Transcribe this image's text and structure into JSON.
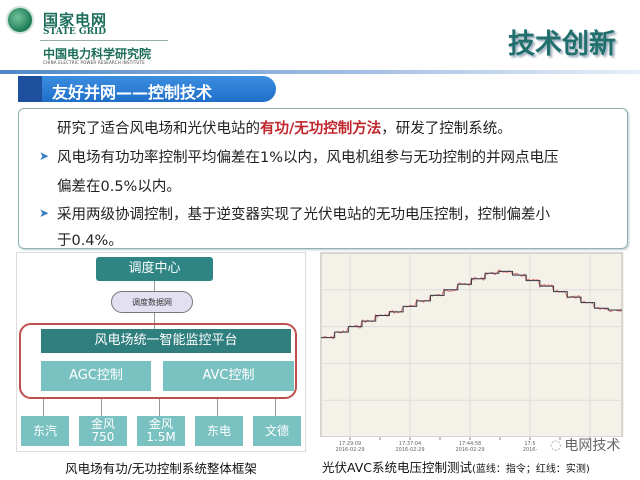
{
  "header": {
    "org_cn": "国家电网",
    "org_en": "STATE GRID",
    "institute_cn": "中国电力科学研究院",
    "institute_en": "CHINA ELECTRIC POWER RESEARCH INSTITUTE",
    "slogan": "技术创新"
  },
  "section_title": "友好并网——控制技术",
  "content": {
    "line1_pre": "研究了适合风电场和光伏电站的",
    "line1_hl": "有功/无功控制方法",
    "line1_post": "，研发了控制系统。",
    "bullet1_a": "风电场有功功率控制平均偏差在1%以内，风电机组参与无功控制的并网点电压",
    "bullet1_b": "偏差在0.5%以内。",
    "bullet2_a": "采用两级协调控制，基于逆变器实现了光伏电站的无功电压控制，控制偏差小",
    "bullet2_b": "于0.4%。"
  },
  "diagram": {
    "dispatch_center": "调度中心",
    "network": "调度数据网",
    "platform": "风电场统一智能监控平台",
    "agc": "AGC控制",
    "avc": "AVC控制",
    "vendors": [
      "东汽",
      "金风\n750",
      "金风\n1.5M",
      "东电",
      "文德"
    ],
    "caption": "风电场有功/无功控制系统整体框架"
  },
  "chart_data": {
    "type": "line",
    "title": "",
    "x_tick_labels": [
      "17:29:09\n2016-02-29",
      "17:37:04\n2016-02-29",
      "17:44:58\n2016-02-29",
      "17:5\n2016-"
    ],
    "ylim": [
      0,
      100
    ],
    "grid": true,
    "series": [
      {
        "name": "蓝线：指令",
        "color": "#333a4a",
        "values": [
          54,
          57,
          60,
          63,
          66,
          68,
          71,
          74,
          77,
          80,
          83,
          86,
          89,
          90,
          88,
          85,
          82,
          79,
          76,
          73,
          70,
          69
        ]
      },
      {
        "name": "红线：实测",
        "color": "#e06060"
      }
    ],
    "caption_main": "光伏AVC系统电压控制测试",
    "caption_legend": "(蓝线：指令；红线：实测)"
  },
  "watermark": "电网技术"
}
